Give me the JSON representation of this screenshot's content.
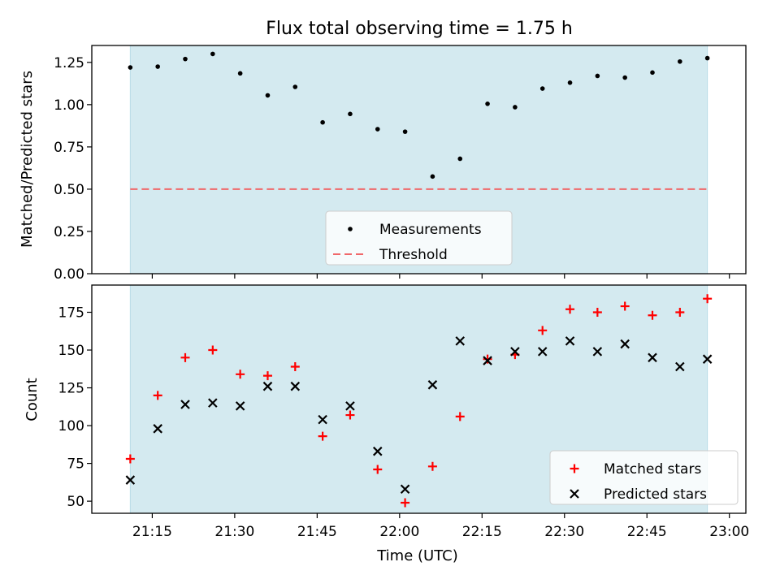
{
  "chart_data": [
    {
      "type": "scatter",
      "title": "Flux total observing time = 1.75 h",
      "xlabel": "",
      "ylabel": "Matched/Predicted stars",
      "ylim": [
        0,
        1.35
      ],
      "yticks": [
        "0.00",
        "0.25",
        "0.50",
        "0.75",
        "1.00",
        "1.25"
      ],
      "x": [
        "21:11",
        "21:16",
        "21:21",
        "21:26",
        "21:31",
        "21:36",
        "21:41",
        "21:46",
        "21:51",
        "21:56",
        "22:01",
        "22:06",
        "22:11",
        "22:16",
        "22:21",
        "22:26",
        "22:31",
        "22:36",
        "22:41",
        "22:46",
        "22:51",
        "22:56"
      ],
      "series": [
        {
          "name": "Measurements",
          "marker": "dot",
          "color": "#000000",
          "values": [
            1.22,
            1.225,
            1.27,
            1.3,
            1.185,
            1.055,
            1.105,
            0.895,
            0.945,
            0.855,
            0.84,
            0.575,
            0.68,
            1.005,
            0.985,
            1.095,
            1.13,
            1.17,
            1.16,
            1.19,
            1.255,
            1.275
          ]
        },
        {
          "name": "Threshold",
          "style": "dashed",
          "color": "#f0686a",
          "value": 0.5
        }
      ],
      "shaded_span": {
        "from": "21:11",
        "to": "22:56",
        "color": "#d4eaf0"
      },
      "legend_position": "lower center"
    },
    {
      "type": "scatter",
      "title": "",
      "xlabel": "Time (UTC)",
      "ylabel": "Count",
      "ylim": [
        42,
        193
      ],
      "yticks": [
        "50",
        "75",
        "100",
        "125",
        "150",
        "175"
      ],
      "xlim": [
        "21:04",
        "23:03"
      ],
      "xticks": [
        "21:15",
        "21:30",
        "21:45",
        "22:00",
        "22:15",
        "22:30",
        "22:45",
        "23:00"
      ],
      "x": [
        "21:11",
        "21:16",
        "21:21",
        "21:26",
        "21:31",
        "21:36",
        "21:41",
        "21:46",
        "21:51",
        "21:56",
        "22:01",
        "22:06",
        "22:11",
        "22:16",
        "22:21",
        "22:26",
        "22:31",
        "22:36",
        "22:41",
        "22:46",
        "22:51",
        "22:56"
      ],
      "series": [
        {
          "name": "Matched stars",
          "marker": "plus",
          "color": "#ff0000",
          "values": [
            78,
            120,
            145,
            150,
            134,
            133,
            139,
            93,
            107,
            71,
            49,
            73,
            106,
            144,
            147,
            163,
            177,
            175,
            179,
            173,
            175,
            184
          ]
        },
        {
          "name": "Predicted stars",
          "marker": "x",
          "color": "#000000",
          "values": [
            64,
            98,
            114,
            115,
            113,
            126,
            126,
            104,
            113,
            83,
            58,
            127,
            156,
            143,
            149,
            149,
            156,
            149,
            154,
            145,
            139,
            144
          ]
        }
      ],
      "shaded_span": {
        "from": "21:11",
        "to": "22:56",
        "color": "#d4eaf0"
      },
      "legend_position": "lower right"
    }
  ]
}
